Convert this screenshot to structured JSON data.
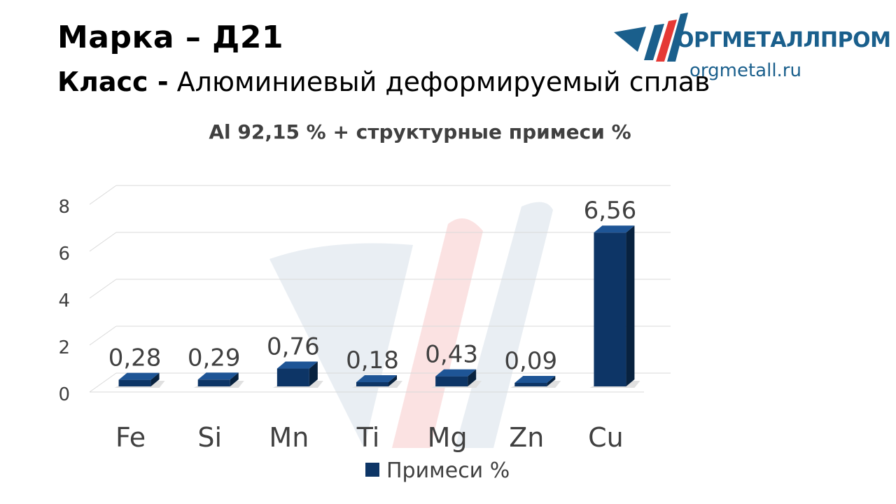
{
  "header": {
    "title": "Марка – Д21",
    "class_label": "Класс -",
    "class_value": " Алюминиевый деформируемый сплав"
  },
  "logo": {
    "brand": "ОРГМЕТАЛЛПРОМ",
    "url": "orgmetall.ru",
    "colors": {
      "primary": "#1a5f8c",
      "accent": "#e53935"
    }
  },
  "chart_data": {
    "type": "bar",
    "title": "Al 92,15 % + структурные примеси %",
    "categories": [
      "Fe",
      "Si",
      "Mn",
      "Ti",
      "Mg",
      "Zn",
      "Cu"
    ],
    "series": [
      {
        "name": "Примеси %",
        "values": [
          0.28,
          0.29,
          0.76,
          0.18,
          0.43,
          0.09,
          6.56
        ],
        "labels": [
          "0,28",
          "0,29",
          "0,76",
          "0,18",
          "0,43",
          "0,09",
          "6,56"
        ],
        "color": "#0d3566"
      }
    ],
    "yticks": [
      "0",
      "2",
      "4",
      "6",
      "8"
    ],
    "ylim": [
      0,
      8
    ],
    "grid": true,
    "legend_position": "bottom",
    "three_d": true
  }
}
